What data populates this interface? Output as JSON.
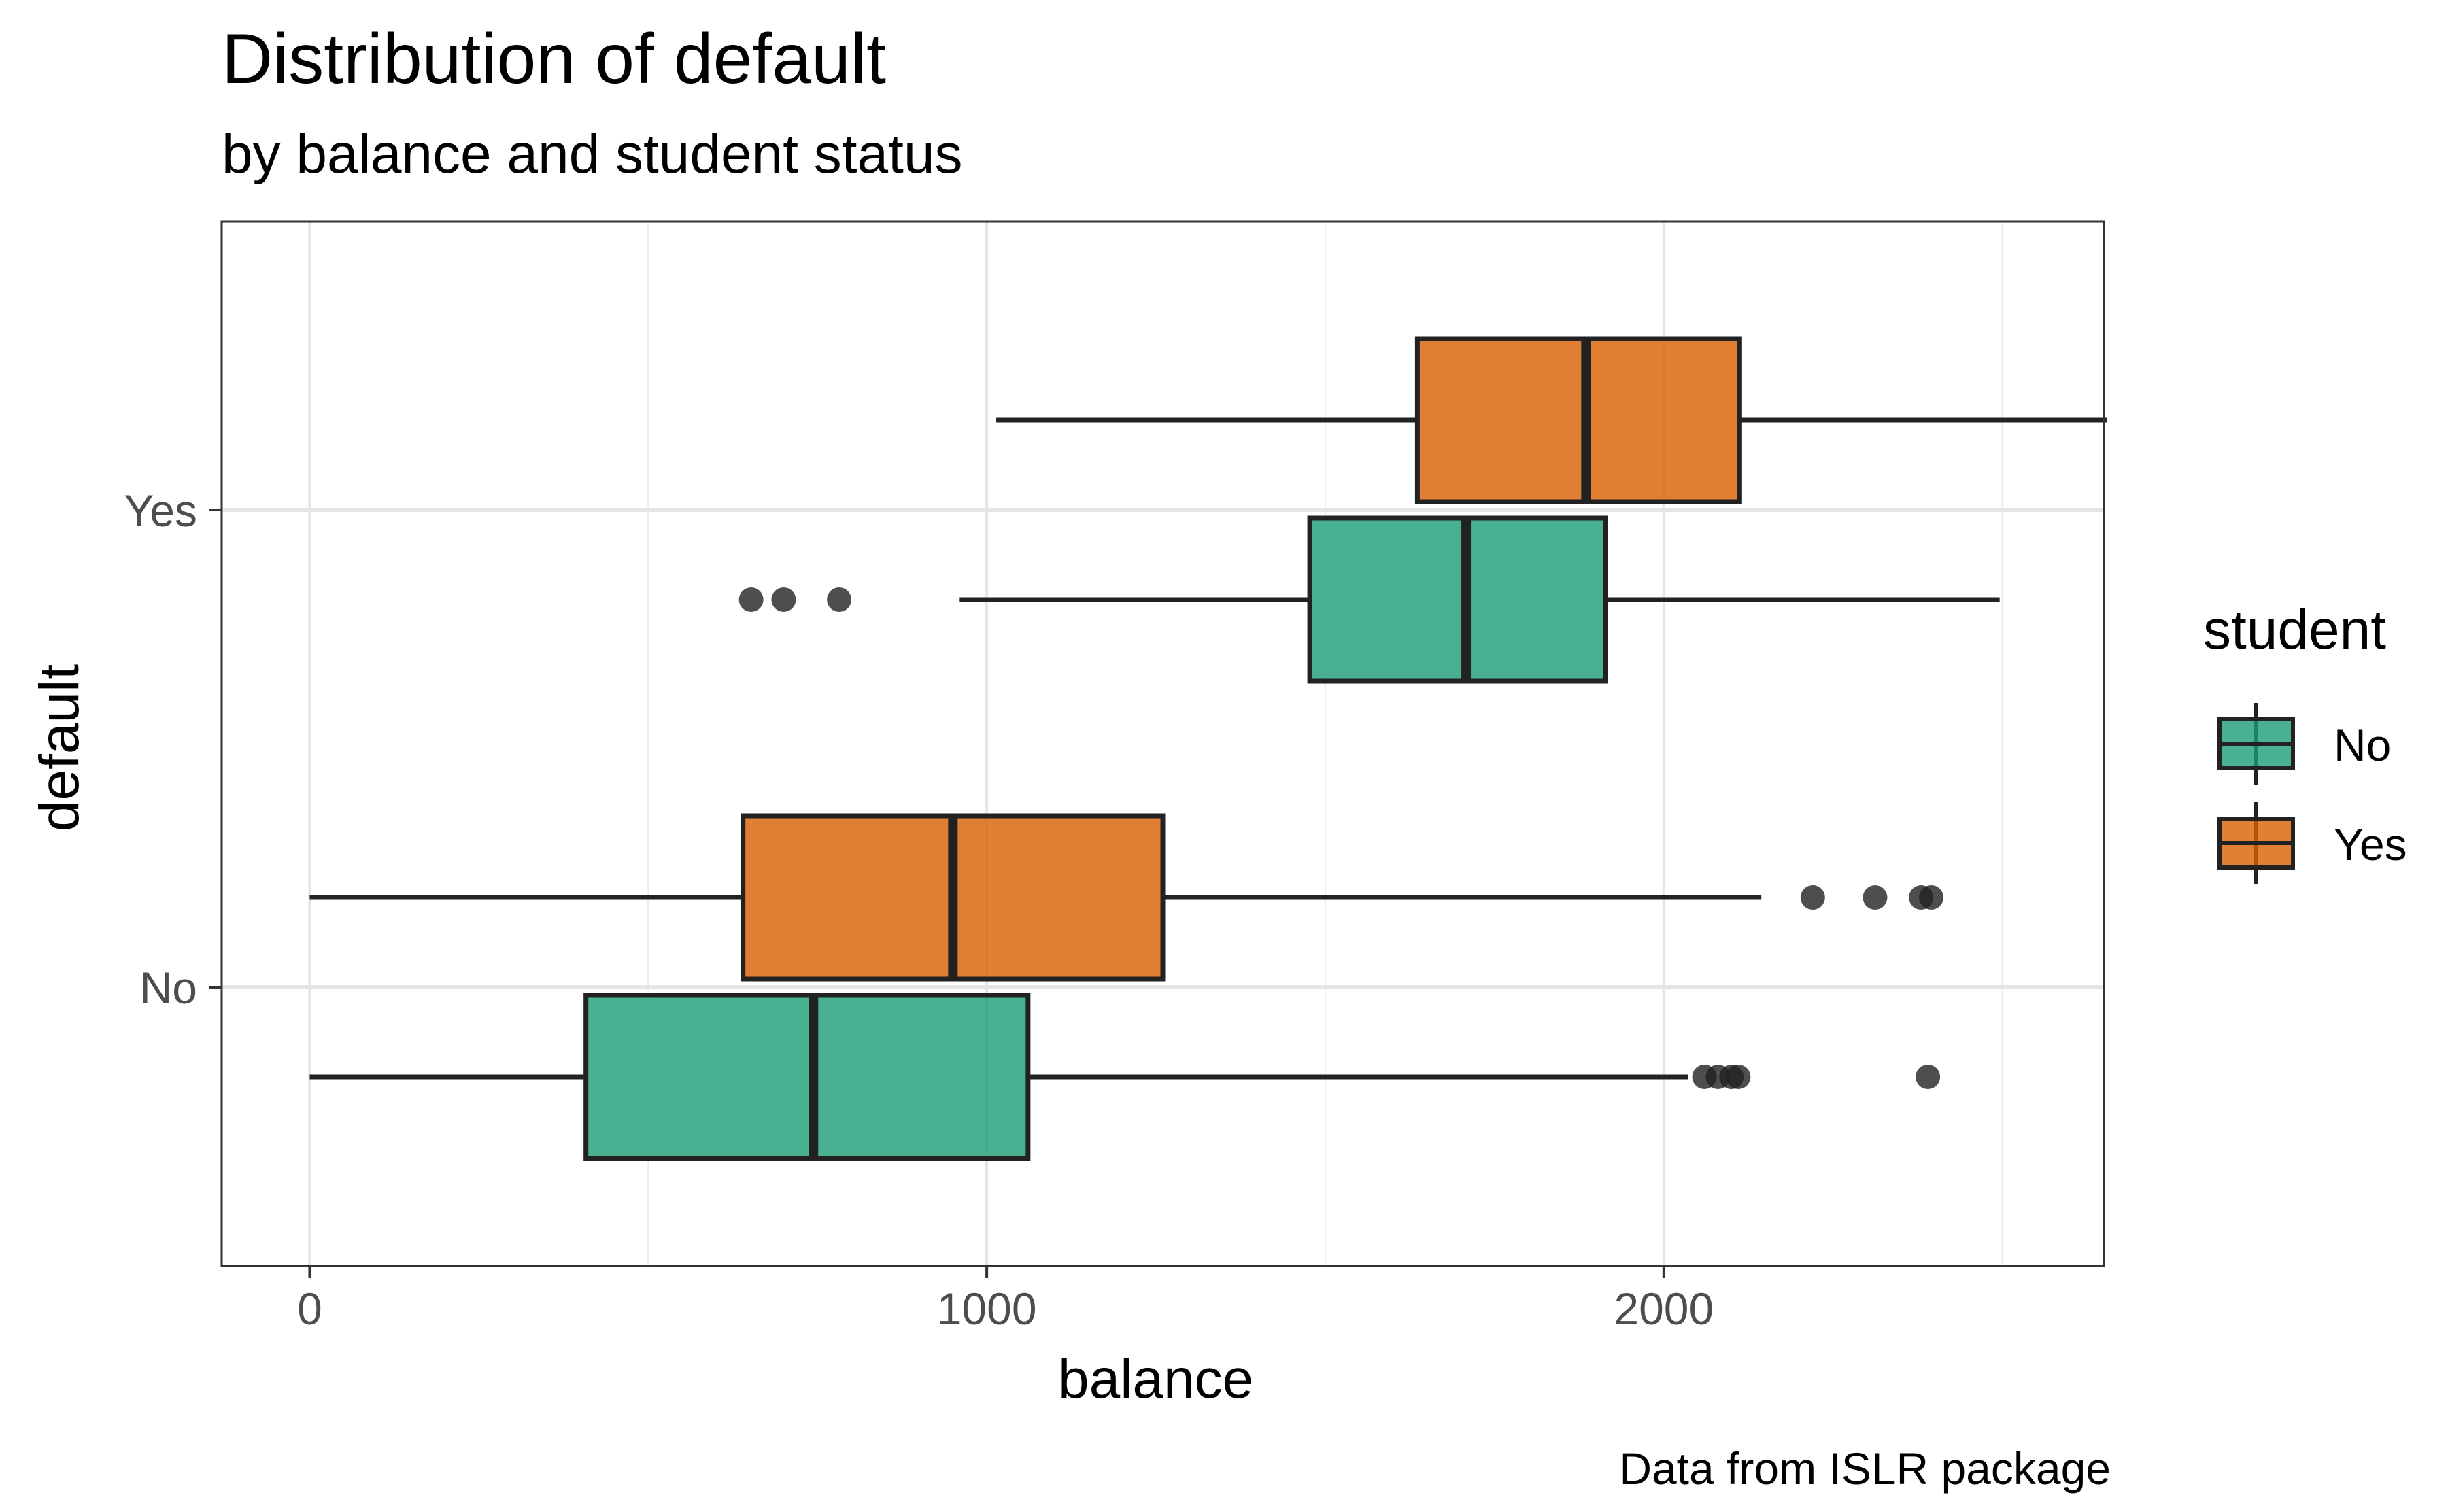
{
  "chart_data": {
    "type": "boxplot",
    "orientation": "horizontal",
    "title": "Distribution of default",
    "subtitle": "by balance and student status",
    "caption": "Data from ISLR package",
    "xlabel": "balance",
    "ylabel": "default",
    "xlim": [
      -130,
      2650
    ],
    "x_ticks": [
      0,
      1000,
      2000
    ],
    "categories": [
      "No",
      "Yes"
    ],
    "legend": {
      "title": "student",
      "position": "right",
      "entries": [
        "No",
        "Yes"
      ]
    },
    "grid": true,
    "series": [
      {
        "name": "No",
        "color": "#1b9e77",
        "boxes": [
          {
            "category": "No",
            "whisker_low": 0,
            "q1": 408,
            "median": 744,
            "q3": 1061,
            "whisker_high": 2036,
            "outliers": [
              2060,
              2080,
              2100,
              2110,
              2390
            ]
          },
          {
            "category": "Yes",
            "whisker_low": 960,
            "q1": 1477,
            "median": 1708,
            "q3": 1914,
            "whisker_high": 2496,
            "outliers": [
              652,
              700,
              782
            ]
          }
        ]
      },
      {
        "name": "Yes",
        "color": "#d95f02",
        "boxes": [
          {
            "category": "No",
            "whisker_low": 0,
            "q1": 640,
            "median": 950,
            "q3": 1260,
            "whisker_high": 2144,
            "outliers": [
              2220,
              2312,
              2380,
              2395
            ]
          },
          {
            "category": "Yes",
            "whisker_low": 1014,
            "q1": 1636,
            "median": 1885,
            "q3": 2112,
            "whisker_high": 2654,
            "outliers": []
          }
        ]
      }
    ]
  }
}
